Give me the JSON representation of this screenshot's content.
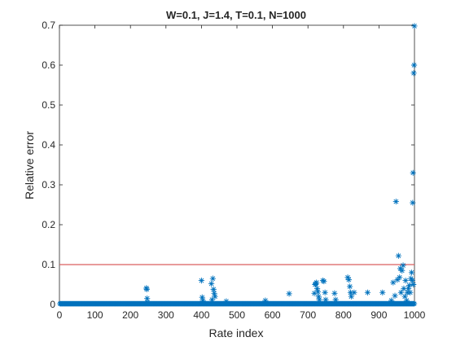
{
  "chart_data": {
    "type": "scatter",
    "title": "W=0.1, J=1.4, T=0.1, N=1000",
    "xlabel": "Rate index",
    "ylabel": "Relative error",
    "xlim": [
      0,
      1000
    ],
    "ylim": [
      0,
      0.7
    ],
    "xticks": [
      0,
      100,
      200,
      300,
      400,
      500,
      600,
      700,
      800,
      900,
      1000
    ],
    "yticks": [
      0,
      0.1,
      0.2,
      0.3,
      0.4,
      0.5,
      0.6,
      0.7
    ],
    "marker": "asterisk",
    "grid": false,
    "legend": "none",
    "colors": {
      "points": "#0072BD",
      "threshold": "#D95F5F",
      "axes": "#262626"
    },
    "threshold_line": {
      "y": 0.1
    },
    "baseline_points": {
      "x_start": 1,
      "x_end": 1000,
      "y": 0.002
    },
    "points": [
      {
        "x": 245,
        "y": 0.041
      },
      {
        "x": 246,
        "y": 0.038
      },
      {
        "x": 247,
        "y": 0.015
      },
      {
        "x": 248,
        "y": 0.006
      },
      {
        "x": 400,
        "y": 0.06
      },
      {
        "x": 402,
        "y": 0.018
      },
      {
        "x": 404,
        "y": 0.01
      },
      {
        "x": 428,
        "y": 0.052
      },
      {
        "x": 432,
        "y": 0.065
      },
      {
        "x": 434,
        "y": 0.038
      },
      {
        "x": 436,
        "y": 0.028
      },
      {
        "x": 438,
        "y": 0.02
      },
      {
        "x": 430,
        "y": 0.012
      },
      {
        "x": 470,
        "y": 0.008
      },
      {
        "x": 580,
        "y": 0.01
      },
      {
        "x": 647,
        "y": 0.027
      },
      {
        "x": 718,
        "y": 0.028
      },
      {
        "x": 720,
        "y": 0.05
      },
      {
        "x": 722,
        "y": 0.052
      },
      {
        "x": 724,
        "y": 0.055
      },
      {
        "x": 726,
        "y": 0.04
      },
      {
        "x": 728,
        "y": 0.032
      },
      {
        "x": 730,
        "y": 0.02
      },
      {
        "x": 732,
        "y": 0.012
      },
      {
        "x": 742,
        "y": 0.06
      },
      {
        "x": 745,
        "y": 0.058
      },
      {
        "x": 748,
        "y": 0.03
      },
      {
        "x": 750,
        "y": 0.012
      },
      {
        "x": 775,
        "y": 0.028
      },
      {
        "x": 778,
        "y": 0.012
      },
      {
        "x": 812,
        "y": 0.068
      },
      {
        "x": 815,
        "y": 0.062
      },
      {
        "x": 818,
        "y": 0.045
      },
      {
        "x": 820,
        "y": 0.03
      },
      {
        "x": 822,
        "y": 0.02
      },
      {
        "x": 830,
        "y": 0.03
      },
      {
        "x": 868,
        "y": 0.03
      },
      {
        "x": 910,
        "y": 0.03
      },
      {
        "x": 935,
        "y": 0.01
      },
      {
        "x": 940,
        "y": 0.055
      },
      {
        "x": 945,
        "y": 0.022
      },
      {
        "x": 948,
        "y": 0.258
      },
      {
        "x": 952,
        "y": 0.062
      },
      {
        "x": 955,
        "y": 0.122
      },
      {
        "x": 958,
        "y": 0.068
      },
      {
        "x": 960,
        "y": 0.09
      },
      {
        "x": 962,
        "y": 0.03
      },
      {
        "x": 965,
        "y": 0.085
      },
      {
        "x": 968,
        "y": 0.098
      },
      {
        "x": 970,
        "y": 0.04
      },
      {
        "x": 973,
        "y": 0.02
      },
      {
        "x": 975,
        "y": 0.06
      },
      {
        "x": 978,
        "y": 0.01
      },
      {
        "x": 980,
        "y": 0.03
      },
      {
        "x": 983,
        "y": 0.04
      },
      {
        "x": 985,
        "y": 0.048
      },
      {
        "x": 988,
        "y": 0.03
      },
      {
        "x": 990,
        "y": 0.065
      },
      {
        "x": 992,
        "y": 0.08
      },
      {
        "x": 994,
        "y": 0.06
      },
      {
        "x": 995,
        "y": 0.255
      },
      {
        "x": 996,
        "y": 0.33
      },
      {
        "x": 997,
        "y": 0.05
      },
      {
        "x": 998,
        "y": 0.58
      },
      {
        "x": 999,
        "y": 0.6
      },
      {
        "x": 1000,
        "y": 0.698
      }
    ]
  }
}
